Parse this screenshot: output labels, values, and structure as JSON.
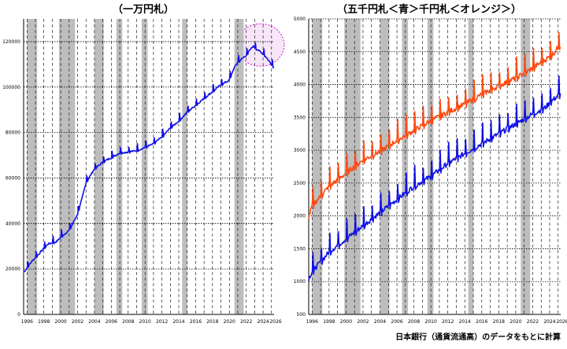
{
  "source_note": "日本銀行（通貨流通高）のデータをもとに計算",
  "colors": {
    "series_blue": "#1010e6",
    "series_orange": "#ff4a10",
    "recession_band": "#bdbdbd",
    "highlight_ellipse": "#e000e0",
    "highlight_fill": "#f7e6f7",
    "grid": "#000000"
  },
  "chart_data": [
    {
      "type": "line",
      "title": "（一万円札）",
      "xlabel": "",
      "ylabel": "",
      "xlim": [
        1995.6,
        2025.3
      ],
      "ylim": [
        0,
        130000
      ],
      "yticks": [
        0,
        20000,
        40000,
        60000,
        80000,
        100000,
        120000
      ],
      "x_tick_labels": [
        "1996",
        "1998",
        "2000",
        "2002",
        "2004",
        "2006",
        "2008",
        "2010",
        "2012",
        "2014",
        "2016",
        "2018",
        "2020",
        "2022",
        "2024",
        "2026"
      ],
      "grid": "dashed vertical every year, dotted horizontal at y ticks",
      "shaded_periods": [
        [
          1996.0,
          1997.2
        ],
        [
          1999.8,
          2001.7
        ],
        [
          2004.0,
          2005.1
        ],
        [
          2006.6,
          2007.3
        ],
        [
          2009.6,
          2010.3
        ],
        [
          2014.4,
          2015.0
        ],
        [
          2020.6,
          2021.7
        ]
      ],
      "highlight": "ellipse around 2023–2025 peak",
      "series": [
        {
          "name": "",
          "color": "#1010e6",
          "x": [
            1995.6,
            1996.5,
            1997.5,
            1998.5,
            1999.5,
            2000.0,
            2001.0,
            2002.0,
            2002.6,
            2003.0,
            2004.0,
            2005.0,
            2006.0,
            2007.0,
            2008.0,
            2009.0,
            2010.0,
            2011.0,
            2012.0,
            2013.0,
            2014.0,
            2015.0,
            2016.0,
            2017.0,
            2018.0,
            2019.0,
            2020.0,
            2020.5,
            2021.0,
            2022.0,
            2022.8,
            2023.5,
            2024.2,
            2024.8,
            2025.2
          ],
          "values": [
            18500,
            23000,
            27000,
            31000,
            32000,
            34000,
            37000,
            44000,
            52000,
            58000,
            64000,
            67000,
            69000,
            71000,
            71500,
            72000,
            73500,
            75000,
            78000,
            82000,
            85000,
            89000,
            92000,
            95000,
            98000,
            101000,
            103000,
            108000,
            111000,
            114000,
            118000,
            116000,
            114000,
            111000,
            109000
          ]
        }
      ]
    },
    {
      "type": "line",
      "title": "（五千円札＜青＞千円札＜オレンジ＞）",
      "xlabel": "",
      "ylabel": "",
      "xlim": [
        1995.6,
        2025.3
      ],
      "ylim": [
        500,
        5000
      ],
      "yticks": [
        500,
        1000,
        1500,
        2000,
        2500,
        3000,
        3500,
        4000,
        4500,
        5000
      ],
      "x_tick_labels": [
        "1996",
        "1998",
        "2000",
        "2002",
        "2004",
        "2006",
        "2008",
        "2010",
        "2012",
        "2014",
        "2016",
        "2018",
        "2020",
        "2022",
        "2024",
        "2026"
      ],
      "grid": "dashed vertical every year, dotted horizontal at y ticks",
      "shaded_periods": [
        [
          1996.0,
          1997.2
        ],
        [
          1999.8,
          2001.7
        ],
        [
          2004.0,
          2005.1
        ],
        [
          2006.6,
          2007.3
        ],
        [
          2009.6,
          2010.3
        ],
        [
          2014.4,
          2015.0
        ],
        [
          2020.6,
          2021.7
        ]
      ],
      "series": [
        {
          "name": "五千円札",
          "color": "#1010e6",
          "x": [
            1995.6,
            1996.0,
            1998.0,
            2000.0,
            2002.0,
            2004.0,
            2006.0,
            2008.0,
            2010.0,
            2012.0,
            2014.0,
            2016.0,
            2018.0,
            2020.0,
            2022.0,
            2023.5,
            2024.2,
            2025.2
          ],
          "values": [
            1050,
            1150,
            1450,
            1650,
            1850,
            2050,
            2250,
            2450,
            2600,
            2800,
            2950,
            3100,
            3250,
            3400,
            3550,
            3650,
            3750,
            3850
          ]
        },
        {
          "name": "千円札",
          "color": "#ff4a10",
          "x": [
            1995.6,
            1996.0,
            1998.0,
            2000.0,
            2002.0,
            2004.0,
            2006.0,
            2008.0,
            2010.0,
            2012.0,
            2014.0,
            2016.0,
            2018.0,
            2020.0,
            2022.0,
            2023.5,
            2024.3,
            2025.2
          ],
          "values": [
            1980,
            2150,
            2450,
            2650,
            2850,
            2980,
            3150,
            3300,
            3450,
            3580,
            3700,
            3850,
            3980,
            4100,
            4250,
            4380,
            4450,
            4600
          ]
        }
      ]
    }
  ]
}
